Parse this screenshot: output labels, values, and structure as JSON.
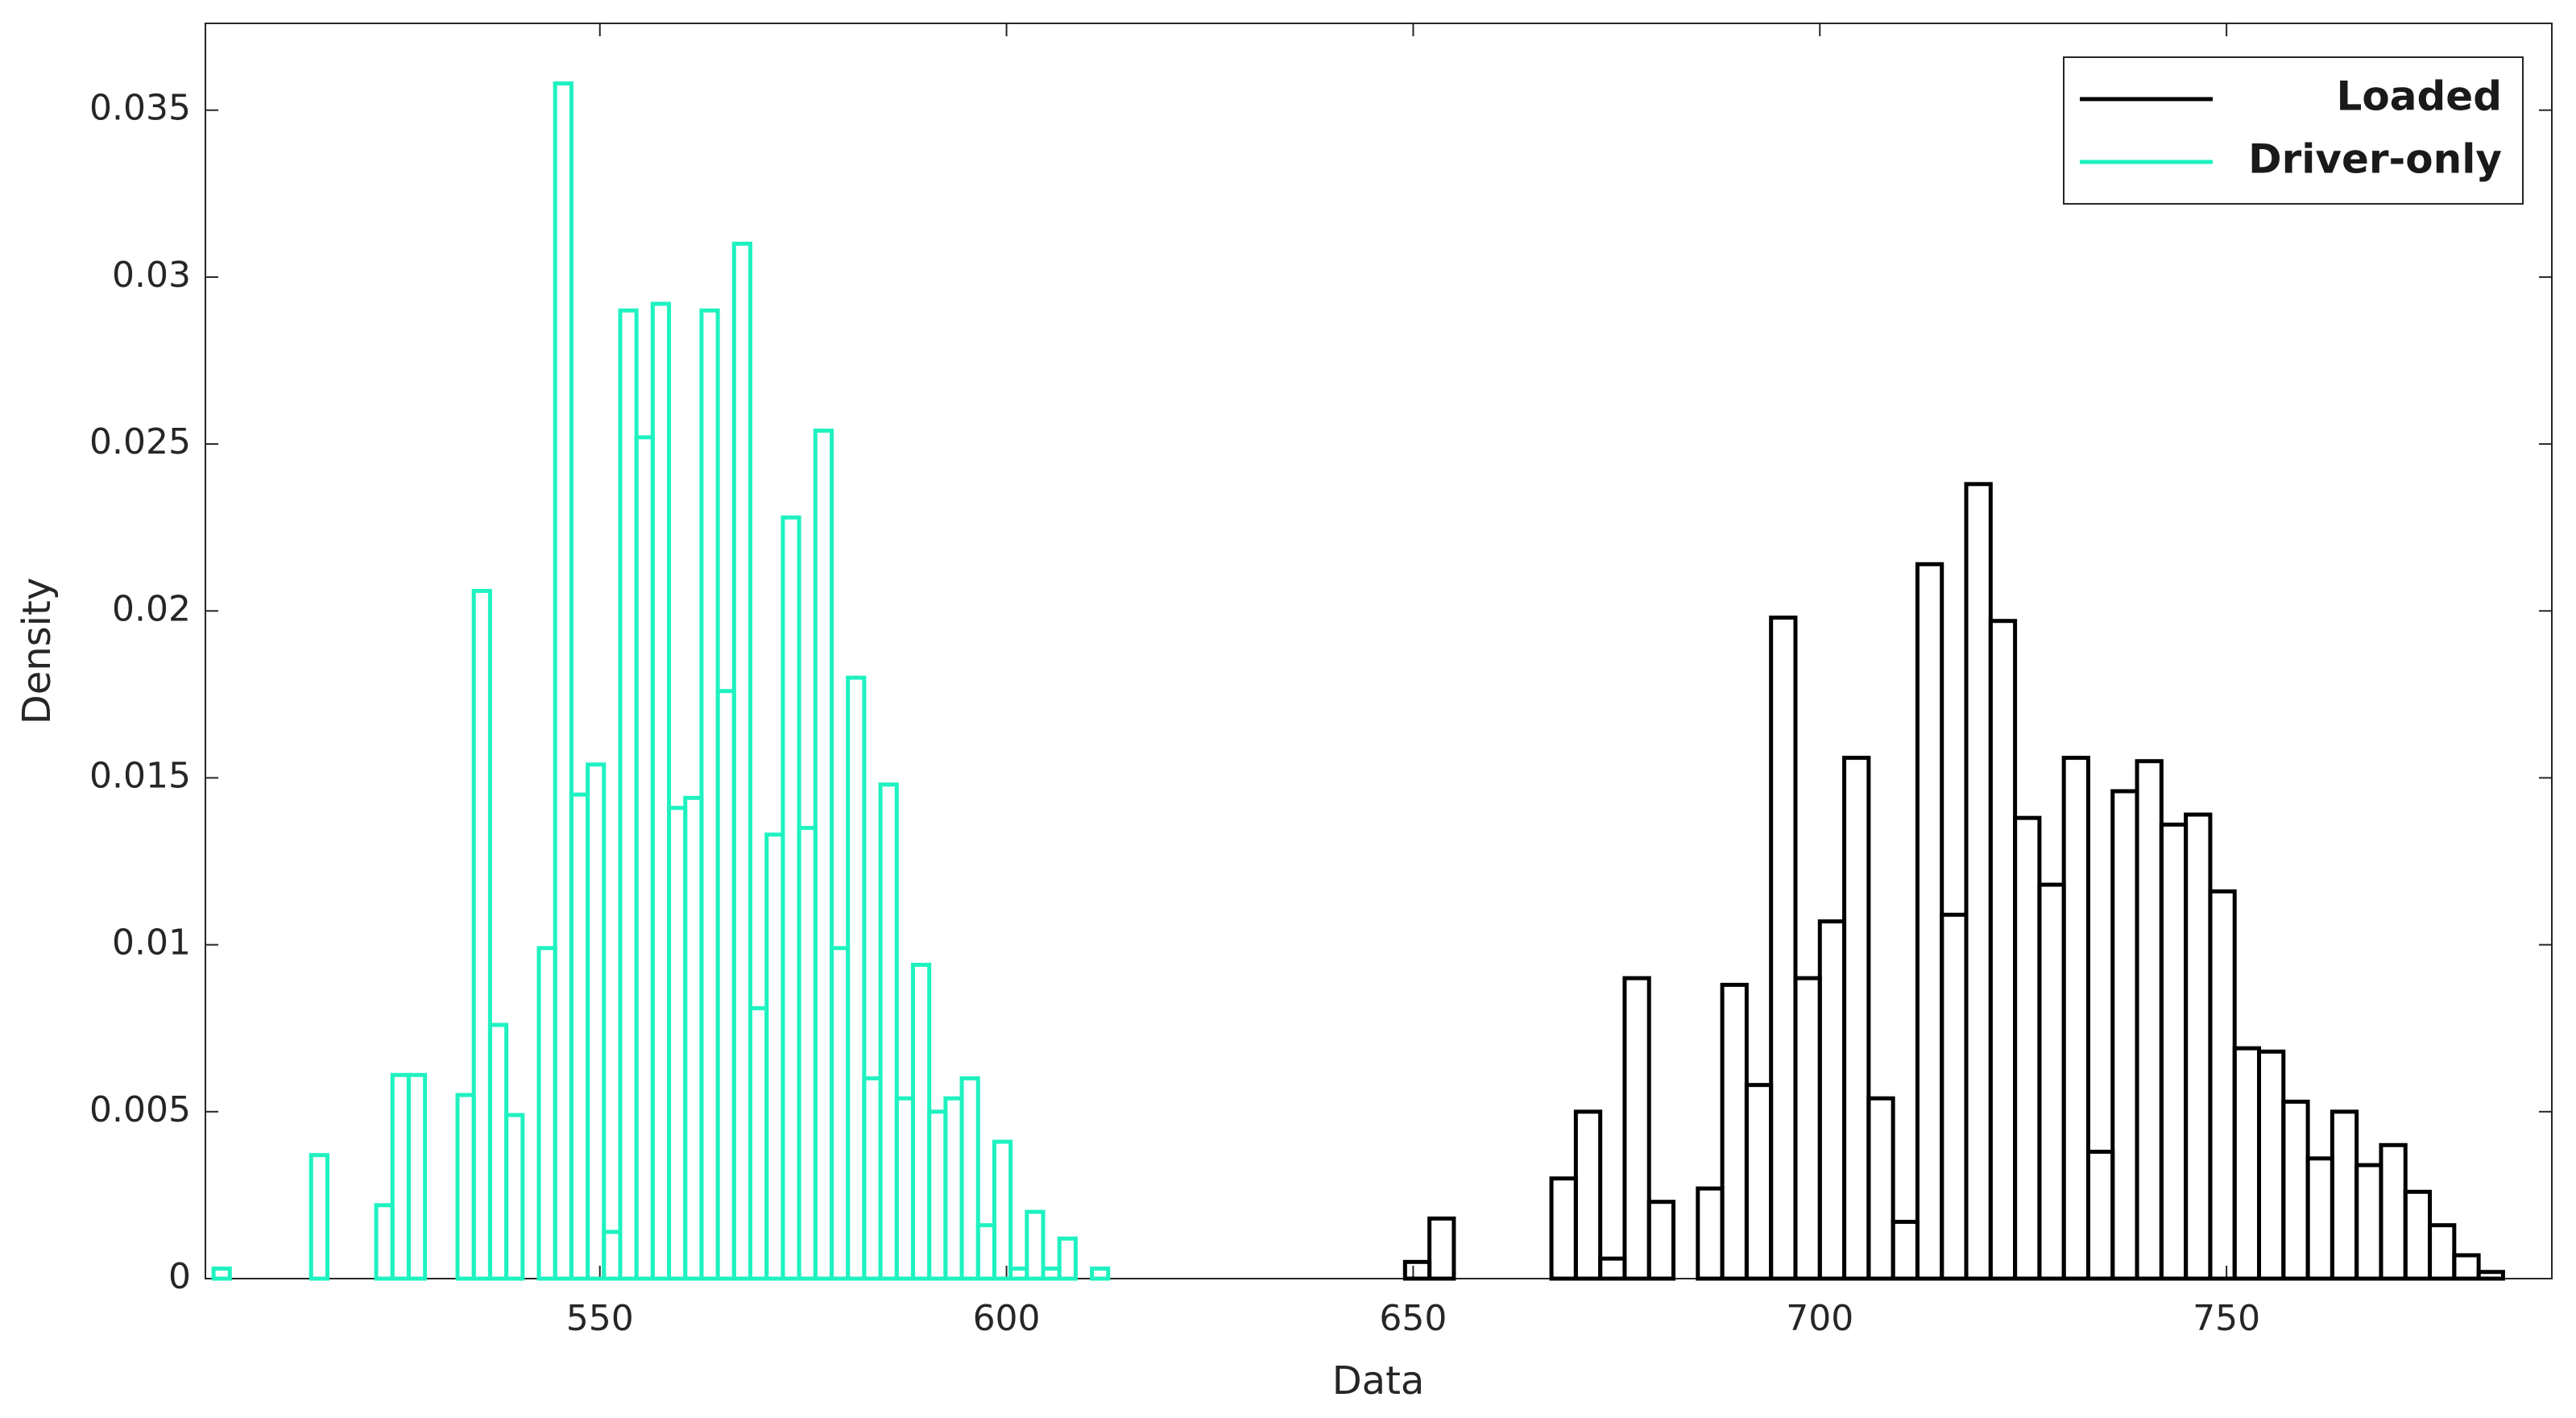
{
  "chart_data": {
    "type": "histogram",
    "xlabel": "Data",
    "ylabel": "Density",
    "xlim": [
      501.5,
      790
    ],
    "ylim": [
      0,
      0.0376
    ],
    "xticks": [
      550,
      600,
      650,
      700,
      750
    ],
    "yticks": [
      0,
      0.005,
      0.01,
      0.015,
      0.02,
      0.025,
      0.03,
      0.035
    ],
    "legend": "northeast",
    "series": [
      {
        "name": "Loaded",
        "color": "#000000",
        "bins": [
          649,
          652,
          655,
          658,
          661,
          664,
          667,
          670,
          673,
          676,
          679,
          682,
          685,
          688,
          691,
          694,
          697,
          700,
          703,
          706,
          709,
          712,
          715,
          718,
          721,
          724,
          727,
          730,
          733,
          736,
          739,
          742,
          745,
          748,
          751,
          754,
          757,
          760,
          763,
          766,
          769,
          772,
          775,
          778,
          781,
          784,
          787
        ],
        "values": [
          0.0005,
          0.0018,
          0,
          0,
          0,
          0,
          0.003,
          0.005,
          0.0006,
          0.009,
          0.0023,
          0,
          0.0027,
          0.0088,
          0.0058,
          0.0198,
          0.009,
          0.0107,
          0.0156,
          0.0054,
          0.0017,
          0.0214,
          0.0109,
          0.0238,
          0.0197,
          0.0138,
          0.0118,
          0.0156,
          0.0038,
          0.0146,
          0.0155,
          0.0136,
          0.0139,
          0.0116,
          0.0069,
          0.0068,
          0.0053,
          0.0036,
          0.005,
          0.0034,
          0.004,
          0.0026,
          0.0016,
          0.0007,
          0.0002,
          0
        ]
      },
      {
        "name": "Driver-only",
        "color": "#1ef2c0",
        "bins": [
          502.5,
          504.5,
          506.5,
          508.5,
          510.5,
          512.5,
          514.5,
          516.5,
          518.5,
          520.5,
          522.5,
          524.5,
          526.5,
          528.5,
          530.5,
          532.5,
          534.5,
          536.5,
          538.5,
          540.5,
          542.5,
          544.5,
          546.5,
          548.5,
          550.5,
          552.5,
          554.5,
          556.5,
          558.5,
          560.5,
          562.5,
          564.5,
          566.5,
          568.5,
          570.5,
          572.5,
          574.5,
          576.5,
          578.5,
          580.5,
          582.5,
          584.5,
          586.5,
          588.5,
          590.5,
          592.5,
          594.5,
          596.5,
          598.5,
          600.5,
          602.5,
          604.5,
          606.5,
          608.5,
          610.5,
          612.5,
          614.5,
          616.5
        ],
        "values": [
          0.0003,
          0,
          0,
          0,
          0,
          0,
          0.0037,
          0,
          0,
          0,
          0.0022,
          0.0061,
          0.0061,
          0,
          0,
          0.0055,
          0.0206,
          0.0076,
          0.0049,
          0,
          0.0099,
          0.0358,
          0.0145,
          0.0154,
          0.0014,
          0.029,
          0.0252,
          0.0292,
          0.0141,
          0.0144,
          0.029,
          0.0176,
          0.031,
          0.0081,
          0.0133,
          0.0228,
          0.0135,
          0.0254,
          0.0099,
          0.018,
          0.006,
          0.0148,
          0.0054,
          0.0094,
          0.005,
          0.0054,
          0.006,
          0.0016,
          0.0041,
          0.0003,
          0.002,
          0.0003,
          0.0012,
          0,
          0.0003,
          0,
          0
        ]
      }
    ]
  }
}
